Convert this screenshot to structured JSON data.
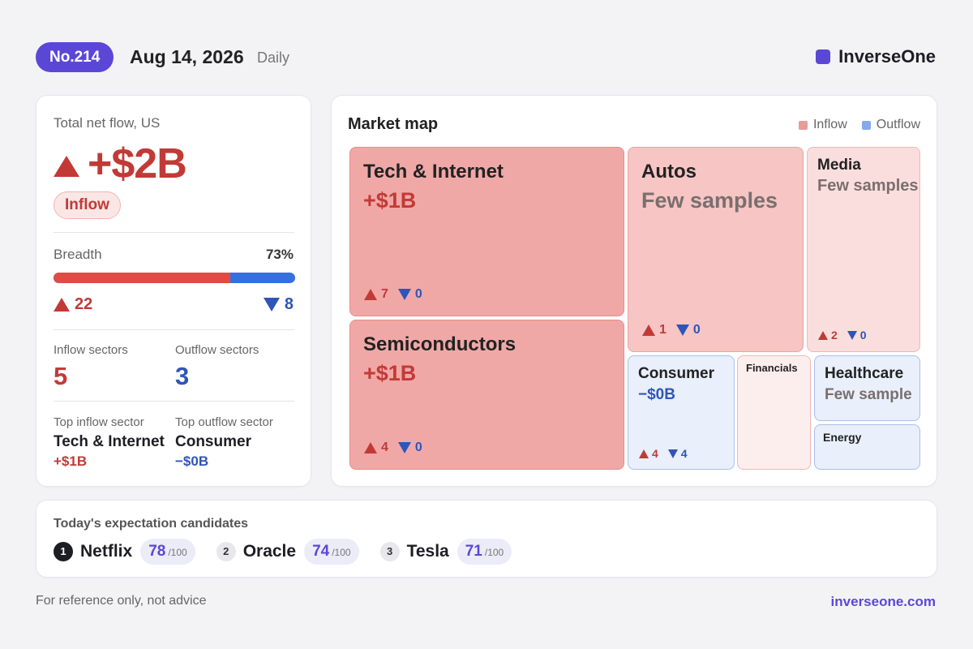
{
  "header": {
    "issue": "No.214",
    "date": "Aug 14, 2026",
    "frequency": "Daily",
    "brand": "InverseOne",
    "brand_color": "#5b47d6"
  },
  "summary": {
    "title": "Total net flow, US",
    "total": "+$2B",
    "direction_badge": "Inflow",
    "breadth_label": "Breadth",
    "breadth_pct_text": "73%",
    "breadth_fraction": 0.73,
    "up_count": "22",
    "down_count": "8",
    "inflow_sectors_label": "Inflow sectors",
    "inflow_sectors_value": "5",
    "outflow_sectors_label": "Outflow sectors",
    "outflow_sectors_value": "3",
    "top_inflow_label": "Top inflow sector",
    "top_inflow_name": "Tech & Internet",
    "top_inflow_value": "+$1B",
    "top_outflow_label": "Top outflow sector",
    "top_outflow_name": "Consumer",
    "top_outflow_value": "−$0B"
  },
  "market_map": {
    "title": "Market map",
    "legend": [
      {
        "label": "Inflow",
        "color": "#e89b98"
      },
      {
        "label": "Outflow",
        "color": "#86a9ec"
      }
    ],
    "tiles": [
      {
        "name": "Tech & Internet",
        "value": "+$1B",
        "up": "7",
        "down": "0",
        "type": "inflow"
      },
      {
        "name": "Semiconductors",
        "value": "+$1B",
        "up": "4",
        "down": "0",
        "type": "inflow"
      },
      {
        "name": "Autos",
        "value": "Few samples",
        "up": "1",
        "down": "0",
        "type": "inflow"
      },
      {
        "name": "Media",
        "value": "Few samples",
        "up": "2",
        "down": "0",
        "type": "inflow"
      },
      {
        "name": "Consumer",
        "value": "−$0B",
        "up": "4",
        "down": "4",
        "type": "outflow"
      },
      {
        "name": "Financials",
        "type": "inflow"
      },
      {
        "name": "Healthcare",
        "value": "Few sample",
        "type": "outflow"
      },
      {
        "name": "Energy",
        "type": "outflow"
      }
    ]
  },
  "candidates": {
    "title": "Today's expectation candidates",
    "max_suffix": "/100",
    "items": [
      {
        "rank": "1",
        "name": "Netflix",
        "score": "78"
      },
      {
        "rank": "2",
        "name": "Oracle",
        "score": "74"
      },
      {
        "rank": "3",
        "name": "Tesla",
        "score": "71"
      }
    ]
  },
  "footer": {
    "disclaimer": "For reference only, not advice",
    "site": "inverseone.com"
  }
}
